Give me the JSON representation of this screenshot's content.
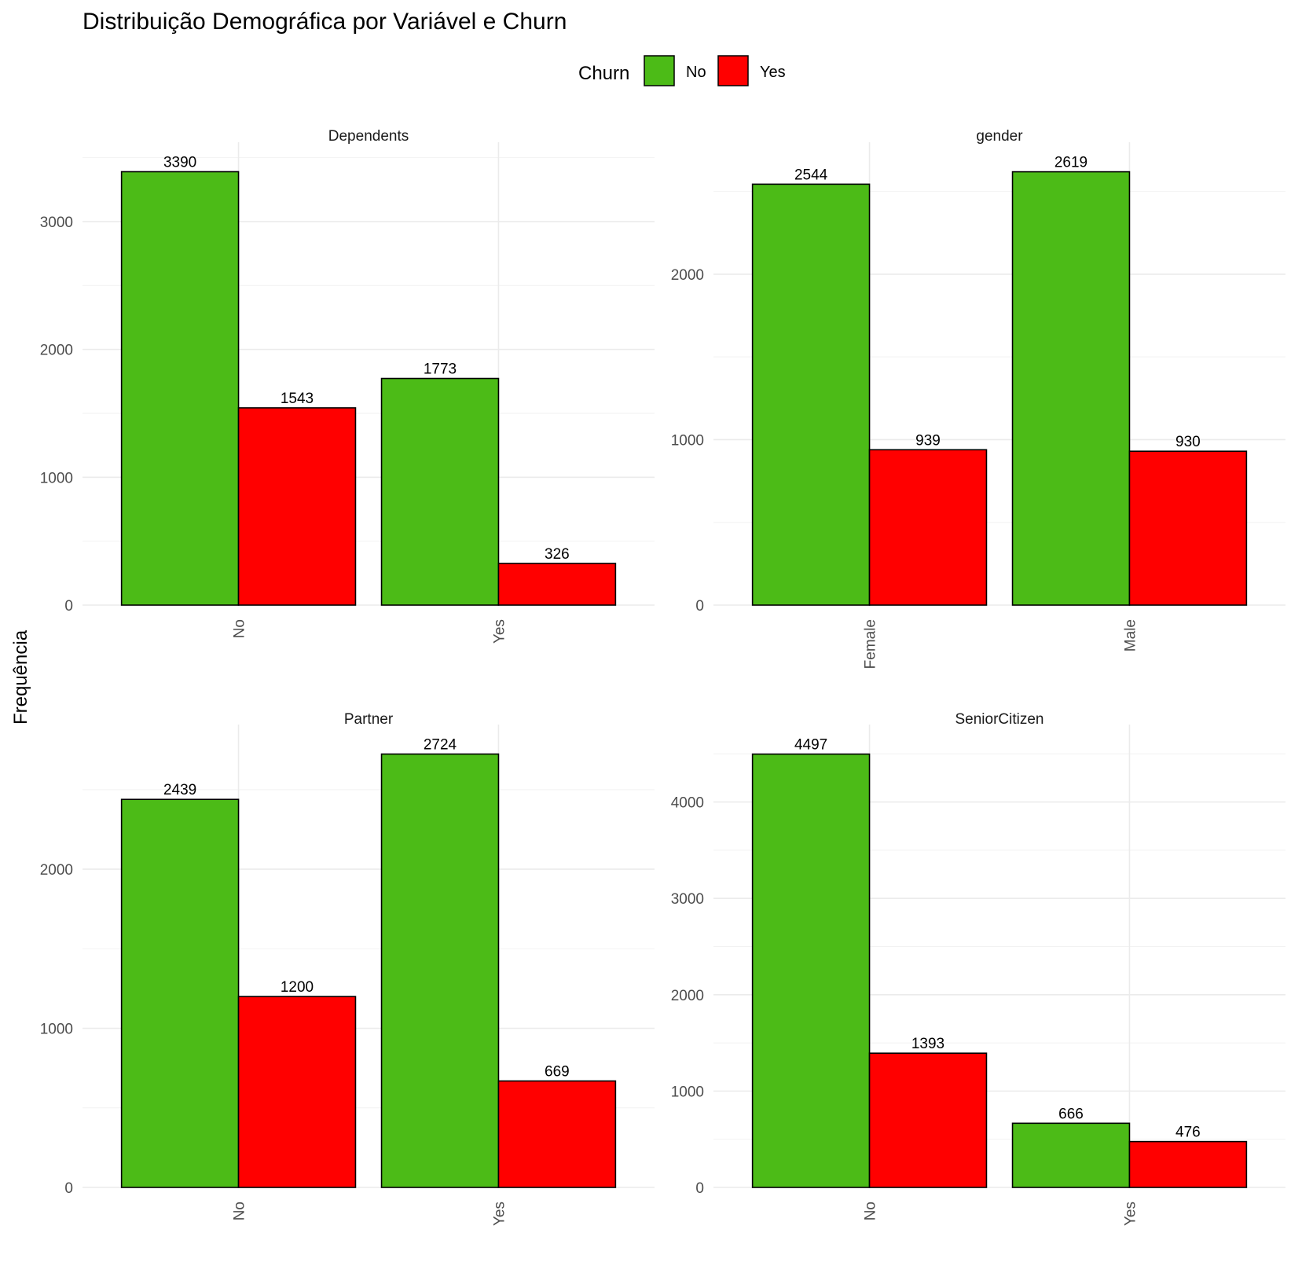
{
  "chart_data": {
    "type": "bar",
    "title": "Distribuição Demográfica por Variável e Churn",
    "ylabel": "Frequência",
    "xlabel": "",
    "legend": {
      "title": "Churn",
      "position": "top",
      "entries": [
        {
          "name": "No",
          "color": "#4CBB17"
        },
        {
          "name": "Yes",
          "color": "#FF0000"
        }
      ]
    },
    "grid": true,
    "facets": [
      {
        "name": "Dependents",
        "categories": [
          "No",
          "Yes"
        ],
        "series": [
          {
            "name": "No",
            "values": [
              3390,
              1773
            ]
          },
          {
            "name": "Yes",
            "values": [
              1543,
              326
            ]
          }
        ],
        "ylim": [
          0,
          3559
        ],
        "yticks": [
          0,
          1000,
          2000,
          3000
        ]
      },
      {
        "name": "gender",
        "categories": [
          "Female",
          "Male"
        ],
        "series": [
          {
            "name": "No",
            "values": [
              2544,
              2619
            ]
          },
          {
            "name": "Yes",
            "values": [
              939,
              930
            ]
          }
        ],
        "ylim": [
          0,
          2750
        ],
        "yticks": [
          0,
          1000,
          2000
        ]
      },
      {
        "name": "Partner",
        "categories": [
          "No",
          "Yes"
        ],
        "series": [
          {
            "name": "No",
            "values": [
              2439,
              2724
            ]
          },
          {
            "name": "Yes",
            "values": [
              1200,
              669
            ]
          }
        ],
        "ylim": [
          0,
          2860
        ],
        "yticks": [
          0,
          1000,
          2000
        ]
      },
      {
        "name": "SeniorCitizen",
        "categories": [
          "No",
          "Yes"
        ],
        "series": [
          {
            "name": "No",
            "values": [
              4497,
              666
            ]
          },
          {
            "name": "Yes",
            "values": [
              1393,
              476
            ]
          }
        ],
        "ylim": [
          0,
          4722
        ],
        "yticks": [
          0,
          1000,
          2000,
          3000,
          4000
        ]
      }
    ]
  }
}
